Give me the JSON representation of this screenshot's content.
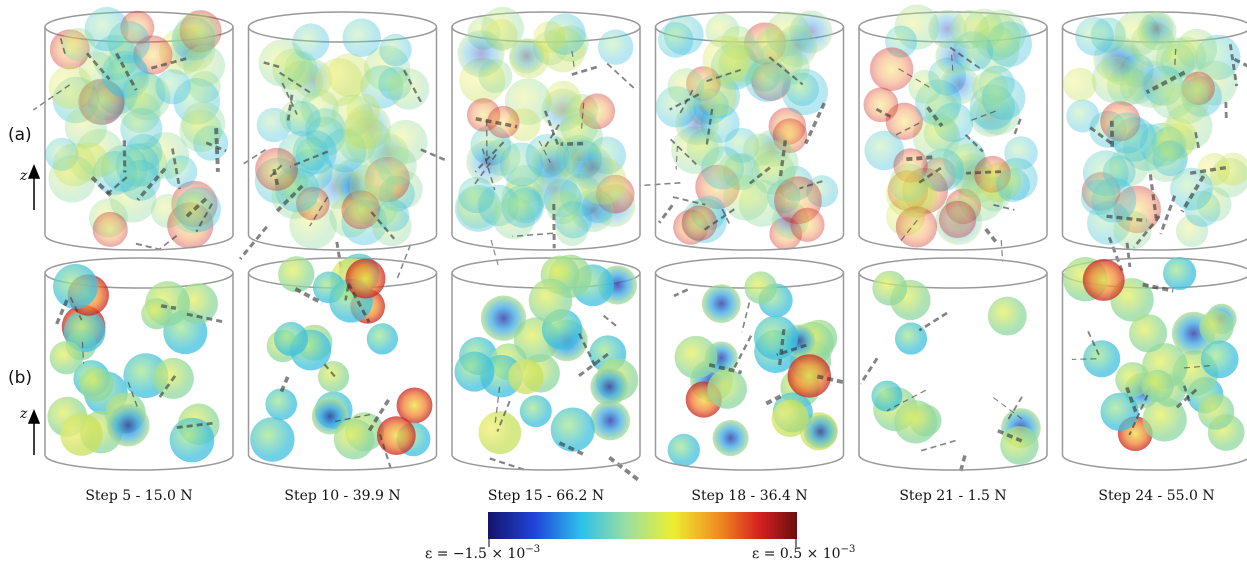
{
  "row_labels": [
    "(a)",
    "(b)"
  ],
  "axis_label": "z",
  "panels": [
    "Step 5 - 15.0 N",
    "Step 10 - 39.9 N",
    "Step 15 - 66.2 N",
    "Step 18 - 36.4 N",
    "Step 21 - 1.5 N",
    "Step 24 - 55.0 N"
  ],
  "colorbar": {
    "min": {
      "text": "ε = −1.5 × 10",
      "exponent": "−3"
    },
    "max": {
      "text": "ε = 0.5 × 10",
      "exponent": "−3"
    }
  }
}
